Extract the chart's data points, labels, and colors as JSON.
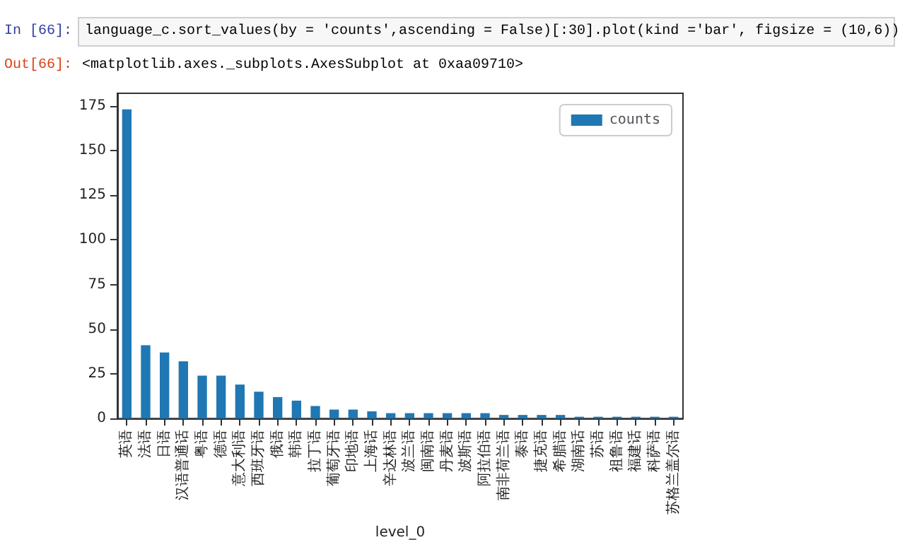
{
  "chart_data": {
    "type": "bar",
    "xlabel": "level_0",
    "categories": [
      "英语",
      "法语",
      "日语",
      "汉语普通话",
      "粤语",
      "德语",
      "意大利语",
      "西班牙语",
      "俄语",
      "韩语",
      "拉丁语",
      "葡萄牙语",
      "印地语",
      "上海话",
      "辛达林语",
      "波兰语",
      "闽南语",
      "丹麦语",
      "波斯语",
      "阿拉伯语",
      "南非荷兰语",
      "泰语",
      "捷克语",
      "希腊语",
      "湖南话",
      "苏语",
      "祖鲁语",
      "福建话",
      "科萨语",
      "苏格兰盖尔语"
    ],
    "series": [
      {
        "name": "counts",
        "color": "#1f77b4",
        "values": [
          173,
          41,
          37,
          32,
          24,
          24,
          19,
          15,
          12,
          10,
          7,
          5,
          5,
          4,
          3,
          3,
          3,
          3,
          3,
          3,
          2,
          2,
          2,
          2,
          1,
          1,
          1,
          1,
          1,
          1
        ]
      }
    ],
    "ylim": [
      0,
      182
    ],
    "yticks": [
      0,
      25,
      50,
      75,
      100,
      125,
      150,
      175
    ],
    "grid": false,
    "legend": "top right",
    "annotations": [
      "In [66]:",
      "language_c.sort_values(by = 'counts',ascending = False)[:30].plot(kind ='bar', figsize = (10,6))",
      "Out[66]:",
      "<matplotlib.axes._subplots.AxesSubplot at 0xaa09710>"
    ]
  }
}
